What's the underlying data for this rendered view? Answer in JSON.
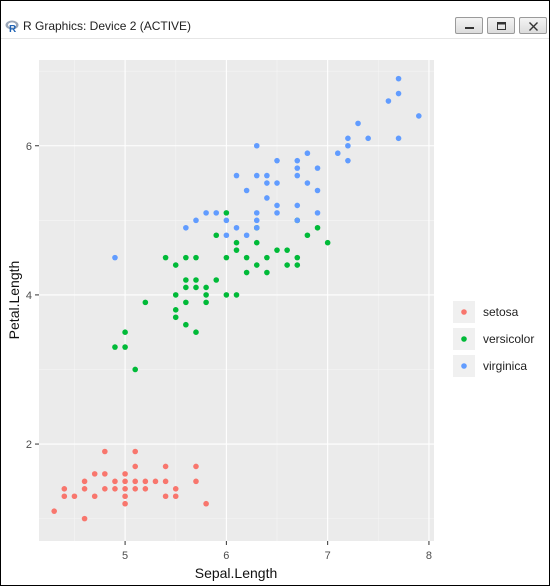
{
  "window": {
    "title": "R Graphics: Device 2 (ACTIVE)",
    "app_icon": "R-logo-icon",
    "controls": [
      "minimize-icon",
      "maximize-icon",
      "close-icon"
    ]
  },
  "chart_data": {
    "type": "scatter",
    "xlabel": "Sepal.Length",
    "ylabel": "Petal.Length",
    "xlim": [
      4.15,
      8.05
    ],
    "ylim": [
      0.7,
      7.15
    ],
    "xticks": [
      5,
      6,
      7,
      8
    ],
    "yticks": [
      2,
      4,
      6
    ],
    "x_tick_labels": [
      "5",
      "6",
      "7",
      "8"
    ],
    "y_tick_labels": [
      "2",
      "4",
      "6"
    ],
    "grid": true,
    "panel_background": "#ebebeb",
    "legend_placement": "right",
    "series": [
      {
        "name": "setosa",
        "color": "#f8766d",
        "points": [
          [
            4.3,
            1.1
          ],
          [
            4.4,
            1.3
          ],
          [
            4.4,
            1.4
          ],
          [
            4.5,
            1.3
          ],
          [
            4.6,
            1.0
          ],
          [
            4.6,
            1.4
          ],
          [
            4.6,
            1.5
          ],
          [
            4.7,
            1.3
          ],
          [
            4.7,
            1.6
          ],
          [
            4.8,
            1.4
          ],
          [
            4.8,
            1.6
          ],
          [
            4.8,
            1.9
          ],
          [
            4.9,
            1.4
          ],
          [
            4.9,
            1.5
          ],
          [
            5.0,
            1.2
          ],
          [
            5.0,
            1.3
          ],
          [
            5.0,
            1.4
          ],
          [
            5.0,
            1.5
          ],
          [
            5.0,
            1.6
          ],
          [
            5.1,
            1.4
          ],
          [
            5.1,
            1.5
          ],
          [
            5.1,
            1.7
          ],
          [
            5.1,
            1.9
          ],
          [
            5.2,
            1.4
          ],
          [
            5.2,
            1.5
          ],
          [
            5.3,
            1.5
          ],
          [
            5.4,
            1.3
          ],
          [
            5.4,
            1.5
          ],
          [
            5.4,
            1.7
          ],
          [
            5.5,
            1.3
          ],
          [
            5.5,
            1.4
          ],
          [
            5.7,
            1.5
          ],
          [
            5.7,
            1.7
          ],
          [
            5.8,
            1.2
          ]
        ]
      },
      {
        "name": "versicolor",
        "color": "#00ba38",
        "points": [
          [
            4.9,
            3.3
          ],
          [
            5.0,
            3.3
          ],
          [
            5.0,
            3.5
          ],
          [
            5.1,
            3.0
          ],
          [
            5.2,
            3.9
          ],
          [
            5.4,
            4.5
          ],
          [
            5.5,
            3.7
          ],
          [
            5.5,
            3.8
          ],
          [
            5.5,
            4.0
          ],
          [
            5.5,
            4.4
          ],
          [
            5.6,
            3.6
          ],
          [
            5.6,
            3.9
          ],
          [
            5.6,
            4.1
          ],
          [
            5.6,
            4.2
          ],
          [
            5.6,
            4.5
          ],
          [
            5.7,
            3.5
          ],
          [
            5.7,
            4.1
          ],
          [
            5.7,
            4.2
          ],
          [
            5.7,
            4.5
          ],
          [
            5.8,
            3.9
          ],
          [
            5.8,
            4.0
          ],
          [
            5.8,
            4.1
          ],
          [
            5.9,
            4.2
          ],
          [
            5.9,
            4.8
          ],
          [
            6.0,
            4.0
          ],
          [
            6.0,
            4.5
          ],
          [
            6.0,
            5.1
          ],
          [
            6.1,
            4.0
          ],
          [
            6.1,
            4.6
          ],
          [
            6.1,
            4.7
          ],
          [
            6.2,
            4.3
          ],
          [
            6.2,
            4.5
          ],
          [
            6.3,
            4.4
          ],
          [
            6.3,
            4.7
          ],
          [
            6.3,
            4.9
          ],
          [
            6.4,
            4.3
          ],
          [
            6.4,
            4.5
          ],
          [
            6.5,
            4.6
          ],
          [
            6.6,
            4.4
          ],
          [
            6.6,
            4.6
          ],
          [
            6.7,
            4.4
          ],
          [
            6.7,
            4.5
          ],
          [
            6.7,
            5.0
          ],
          [
            6.8,
            4.8
          ],
          [
            6.9,
            4.9
          ],
          [
            7.0,
            4.7
          ]
        ]
      },
      {
        "name": "virginica",
        "color": "#619cff",
        "points": [
          [
            4.9,
            4.5
          ],
          [
            5.6,
            4.9
          ],
          [
            5.7,
            5.0
          ],
          [
            5.8,
            5.1
          ],
          [
            5.9,
            5.1
          ],
          [
            6.0,
            4.8
          ],
          [
            6.0,
            5.0
          ],
          [
            6.1,
            4.9
          ],
          [
            6.1,
            5.6
          ],
          [
            6.2,
            4.8
          ],
          [
            6.2,
            5.4
          ],
          [
            6.3,
            4.9
          ],
          [
            6.3,
            5.0
          ],
          [
            6.3,
            5.1
          ],
          [
            6.3,
            5.6
          ],
          [
            6.3,
            6.0
          ],
          [
            6.4,
            5.3
          ],
          [
            6.4,
            5.5
          ],
          [
            6.4,
            5.6
          ],
          [
            6.5,
            5.1
          ],
          [
            6.5,
            5.2
          ],
          [
            6.5,
            5.5
          ],
          [
            6.5,
            5.8
          ],
          [
            6.7,
            5.0
          ],
          [
            6.7,
            5.2
          ],
          [
            6.7,
            5.6
          ],
          [
            6.7,
            5.7
          ],
          [
            6.7,
            5.8
          ],
          [
            6.8,
            5.5
          ],
          [
            6.8,
            5.9
          ],
          [
            6.9,
            5.1
          ],
          [
            6.9,
            5.4
          ],
          [
            6.9,
            5.7
          ],
          [
            7.1,
            5.9
          ],
          [
            7.2,
            5.8
          ],
          [
            7.2,
            6.0
          ],
          [
            7.2,
            6.1
          ],
          [
            7.3,
            6.3
          ],
          [
            7.4,
            6.1
          ],
          [
            7.6,
            6.6
          ],
          [
            7.7,
            6.1
          ],
          [
            7.7,
            6.7
          ],
          [
            7.7,
            6.9
          ],
          [
            7.9,
            6.4
          ]
        ]
      }
    ]
  }
}
